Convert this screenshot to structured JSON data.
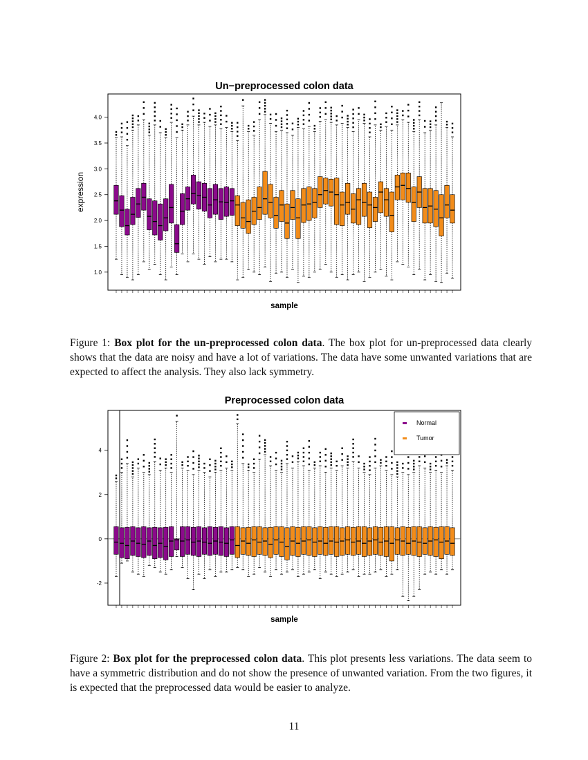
{
  "page_number": "11",
  "figure1": {
    "caption_label": "Figure 1:",
    "caption_bold": "Box plot for the un-preprocessed colon data",
    "caption_text": ". The box plot for un-preprocessed data clearly shows that the data are noisy and have a lot of variations. The data have some unwanted variations that are expected to affect the analysis. They also lack symmetry."
  },
  "figure2": {
    "caption_label": "Figure 2:",
    "caption_bold": "Box plot for the preprocessed colon data",
    "caption_text": ". This plot presents less variations. The data seem to have a symmetric distribution and do not show the presence of unwanted variation. From the two figures, it is expected that the preprocessed data would be easier to analyze."
  },
  "colors": {
    "Normal": "#8B0A8B",
    "Tumor": "#F28C1A"
  },
  "chart_data": [
    {
      "type": "box",
      "title": "Un−preprocessed colon data",
      "xlabel": "sample",
      "ylabel": "expression",
      "ylim": [
        0.65,
        4.45
      ],
      "yticks": [
        1.0,
        1.5,
        2.0,
        2.5,
        3.0,
        3.5,
        4.0
      ],
      "n_samples": 62,
      "group_counts": {
        "Normal": 22,
        "Tumor": 40
      },
      "median": [
        2.38,
        2.2,
        1.9,
        2.12,
        2.32,
        2.45,
        2.08,
        1.98,
        1.9,
        2.05,
        2.25,
        1.55,
        2.18,
        2.42,
        2.52,
        2.48,
        2.45,
        2.3,
        2.4,
        2.36,
        2.35,
        2.38,
        2.3,
        2.05,
        1.98,
        2.18,
        2.25,
        2.42,
        2.35,
        2.1,
        2.3,
        1.95,
        2.25,
        2.05,
        2.3,
        2.32,
        2.35,
        2.5,
        2.58,
        2.55,
        2.5,
        2.3,
        2.35,
        2.22,
        2.4,
        2.35,
        2.3,
        2.25,
        2.55,
        2.4,
        2.1,
        2.65,
        2.68,
        2.62,
        2.35,
        2.55,
        2.25,
        2.28,
        2.22,
        2.05,
        2.3,
        2.2
      ],
      "q1": [
        2.12,
        1.88,
        1.72,
        1.92,
        2.06,
        2.2,
        1.82,
        1.72,
        1.62,
        1.8,
        1.95,
        1.38,
        1.92,
        2.2,
        2.32,
        2.22,
        2.18,
        2.05,
        2.12,
        2.02,
        2.08,
        2.1,
        1.9,
        1.85,
        1.75,
        1.92,
        2.02,
        2.12,
        2.05,
        1.85,
        1.98,
        1.65,
        2.02,
        1.65,
        1.96,
        2.0,
        2.05,
        2.25,
        2.32,
        2.28,
        1.92,
        1.9,
        2.12,
        1.95,
        1.92,
        2.08,
        1.86,
        1.98,
        2.15,
        2.08,
        1.78,
        2.4,
        2.4,
        2.35,
        1.98,
        2.25,
        1.95,
        1.95,
        1.88,
        1.7,
        2.05,
        1.95
      ],
      "q3": [
        2.68,
        2.48,
        2.22,
        2.45,
        2.62,
        2.72,
        2.42,
        2.38,
        2.32,
        2.42,
        2.7,
        1.92,
        2.52,
        2.65,
        2.88,
        2.75,
        2.72,
        2.62,
        2.7,
        2.62,
        2.65,
        2.62,
        2.48,
        2.35,
        2.4,
        2.45,
        2.65,
        2.95,
        2.7,
        2.45,
        2.58,
        2.32,
        2.58,
        2.42,
        2.62,
        2.65,
        2.62,
        2.85,
        2.82,
        2.8,
        2.82,
        2.55,
        2.72,
        2.52,
        2.62,
        2.72,
        2.55,
        2.45,
        2.75,
        2.62,
        2.55,
        2.88,
        2.92,
        2.92,
        2.65,
        2.85,
        2.62,
        2.62,
        2.58,
        2.5,
        2.68,
        2.5
      ],
      "upper_whisker": [
        3.6,
        3.62,
        3.45,
        3.75,
        3.85,
        3.95,
        3.65,
        3.85,
        3.7,
        3.6,
        3.9,
        3.6,
        3.75,
        3.85,
        4.02,
        3.85,
        3.9,
        3.82,
        3.85,
        3.78,
        3.8,
        3.72,
        3.55,
        4.22,
        3.72,
        3.65,
        3.95,
        4.05,
        3.88,
        3.72,
        3.75,
        3.7,
        3.65,
        3.8,
        3.78,
        3.82,
        3.72,
        3.92,
        3.95,
        3.9,
        3.85,
        3.88,
        3.8,
        3.72,
        3.95,
        3.88,
        3.62,
        3.85,
        3.75,
        3.82,
        3.75,
        3.85,
        3.95,
        3.9,
        3.72,
        3.95,
        3.7,
        3.75,
        3.85,
        4.28,
        3.8,
        3.62
      ],
      "lower_whisker": [
        1.25,
        0.95,
        0.9,
        0.85,
        0.95,
        1.2,
        1.05,
        1.15,
        0.95,
        0.85,
        1.1,
        0.95,
        1.35,
        1.2,
        1.35,
        1.25,
        1.15,
        1.3,
        1.2,
        1.25,
        1.25,
        1.2,
        0.85,
        0.9,
        1.05,
        1.0,
        0.95,
        1.1,
        0.82,
        0.98,
        1.0,
        0.9,
        1.05,
        0.8,
        0.92,
        0.9,
        1.0,
        1.05,
        1.15,
        1.0,
        0.9,
        0.95,
        0.85,
        0.95,
        1.0,
        0.82,
        0.9,
        1.0,
        1.05,
        0.92,
        0.85,
        1.2,
        1.15,
        1.1,
        0.95,
        1.05,
        0.85,
        0.95,
        0.82,
        0.8,
        0.98,
        0.88
      ]
    },
    {
      "type": "box",
      "title": "Preprocessed colon data",
      "xlabel": "sample",
      "ylabel": "",
      "ylim": [
        -3.0,
        5.8
      ],
      "yticks": [
        -2,
        0,
        2,
        4
      ],
      "legend": {
        "entries": [
          "Normal",
          "Tumor"
        ],
        "placement": "top-right"
      },
      "n_samples": 62,
      "group_counts": {
        "Normal": 22,
        "Tumor": 40
      },
      "median": [
        -0.15,
        -0.2,
        -0.3,
        -0.1,
        -0.2,
        -0.25,
        -0.1,
        -0.3,
        -0.2,
        -0.35,
        -0.1,
        -0.05,
        -0.1,
        -0.05,
        -0.15,
        -0.1,
        -0.15,
        -0.2,
        -0.1,
        -0.15,
        -0.2,
        -0.05,
        -0.3,
        -0.1,
        -0.2,
        -0.05,
        -0.15,
        -0.1,
        -0.25,
        -0.05,
        -0.15,
        -0.35,
        -0.1,
        -0.2,
        -0.1,
        -0.05,
        -0.15,
        -0.1,
        -0.2,
        -0.1,
        -0.15,
        -0.1,
        -0.05,
        -0.15,
        -0.1,
        -0.2,
        -0.1,
        -0.05,
        -0.15,
        -0.1,
        -0.2,
        -0.05,
        -0.1,
        -0.2,
        -0.1,
        -0.15,
        -0.2,
        -0.1,
        -0.05,
        -0.15,
        -0.1,
        -0.2
      ],
      "q1": [
        -0.7,
        -0.85,
        -0.9,
        -0.75,
        -0.8,
        -0.85,
        -0.75,
        -0.9,
        -0.85,
        -0.95,
        -0.8,
        -0.5,
        -0.8,
        -0.7,
        -0.75,
        -0.8,
        -0.7,
        -0.75,
        -0.7,
        -0.75,
        -0.8,
        -0.7,
        -0.85,
        -0.7,
        -0.75,
        -0.8,
        -0.7,
        -0.75,
        -0.85,
        -0.7,
        -0.8,
        -0.95,
        -0.75,
        -0.8,
        -0.7,
        -0.75,
        -0.8,
        -0.7,
        -0.75,
        -0.7,
        -0.8,
        -0.75,
        -0.7,
        -0.75,
        -0.7,
        -0.8,
        -0.75,
        -0.7,
        -0.75,
        -0.8,
        -1.0,
        -0.7,
        -0.75,
        -0.7,
        -0.75,
        -0.8,
        -0.7,
        -0.75,
        -0.8,
        -0.9,
        -0.7,
        -0.75
      ],
      "q3": [
        0.55,
        0.5,
        0.52,
        0.55,
        0.5,
        0.55,
        0.5,
        0.52,
        0.5,
        0.52,
        0.55,
        0.0,
        0.55,
        0.55,
        0.52,
        0.55,
        0.5,
        0.55,
        0.52,
        0.55,
        0.5,
        0.55,
        0.55,
        0.5,
        0.52,
        0.55,
        0.55,
        0.5,
        0.52,
        0.55,
        0.55,
        0.5,
        0.55,
        0.52,
        0.55,
        0.55,
        0.5,
        0.55,
        0.52,
        0.55,
        0.55,
        0.5,
        0.55,
        0.52,
        0.55,
        0.55,
        0.5,
        0.55,
        0.52,
        0.55,
        0.55,
        0.5,
        0.55,
        0.52,
        0.55,
        0.55,
        0.5,
        0.55,
        0.52,
        0.55,
        0.55,
        0.5
      ],
      "upper_whisker": [
        2.6,
        3.0,
        3.4,
        2.8,
        3.2,
        3.0,
        2.9,
        3.5,
        3.1,
        3.2,
        3.0,
        5.3,
        3.2,
        3.1,
        2.9,
        3.1,
        3.0,
        2.8,
        3.0,
        3.1,
        3.2,
        3.1,
        5.2,
        3.4,
        3.1,
        3.0,
        3.6,
        3.8,
        3.3,
        3.1,
        3.0,
        3.4,
        3.2,
        3.5,
        3.3,
        3.1,
        3.2,
        3.3,
        3.0,
        3.2,
        3.1,
        3.3,
        3.2,
        3.5,
        3.2,
        3.0,
        2.9,
        3.2,
        3.3,
        3.1,
        2.9,
        2.8,
        3.0,
        2.9,
        3.0,
        3.3,
        3.2,
        3.0,
        3.1,
        3.0,
        3.3,
        3.1
      ],
      "lower_whisker": [
        -1.7,
        -1.1,
        -1.0,
        -1.5,
        -1.6,
        -1.7,
        -1.2,
        -1.3,
        -1.5,
        -1.6,
        -1.4,
        -0.8,
        -1.3,
        -1.8,
        -2.3,
        -1.6,
        -1.8,
        -1.4,
        -1.7,
        -1.5,
        -1.5,
        -1.4,
        -1.3,
        -1.4,
        -1.7,
        -1.6,
        -1.3,
        -1.5,
        -1.7,
        -1.4,
        -1.6,
        -1.5,
        -1.4,
        -1.7,
        -1.6,
        -1.5,
        -1.4,
        -1.8,
        -1.5,
        -1.6,
        -1.7,
        -1.6,
        -1.5,
        -1.4,
        -1.7,
        -1.6,
        -1.6,
        -1.5,
        -1.4,
        -1.7,
        -1.6,
        -1.4,
        -2.6,
        -2.8,
        -2.6,
        -2.3,
        -1.6,
        -1.5,
        -1.6,
        -1.4,
        -1.6,
        -1.4
      ]
    }
  ]
}
